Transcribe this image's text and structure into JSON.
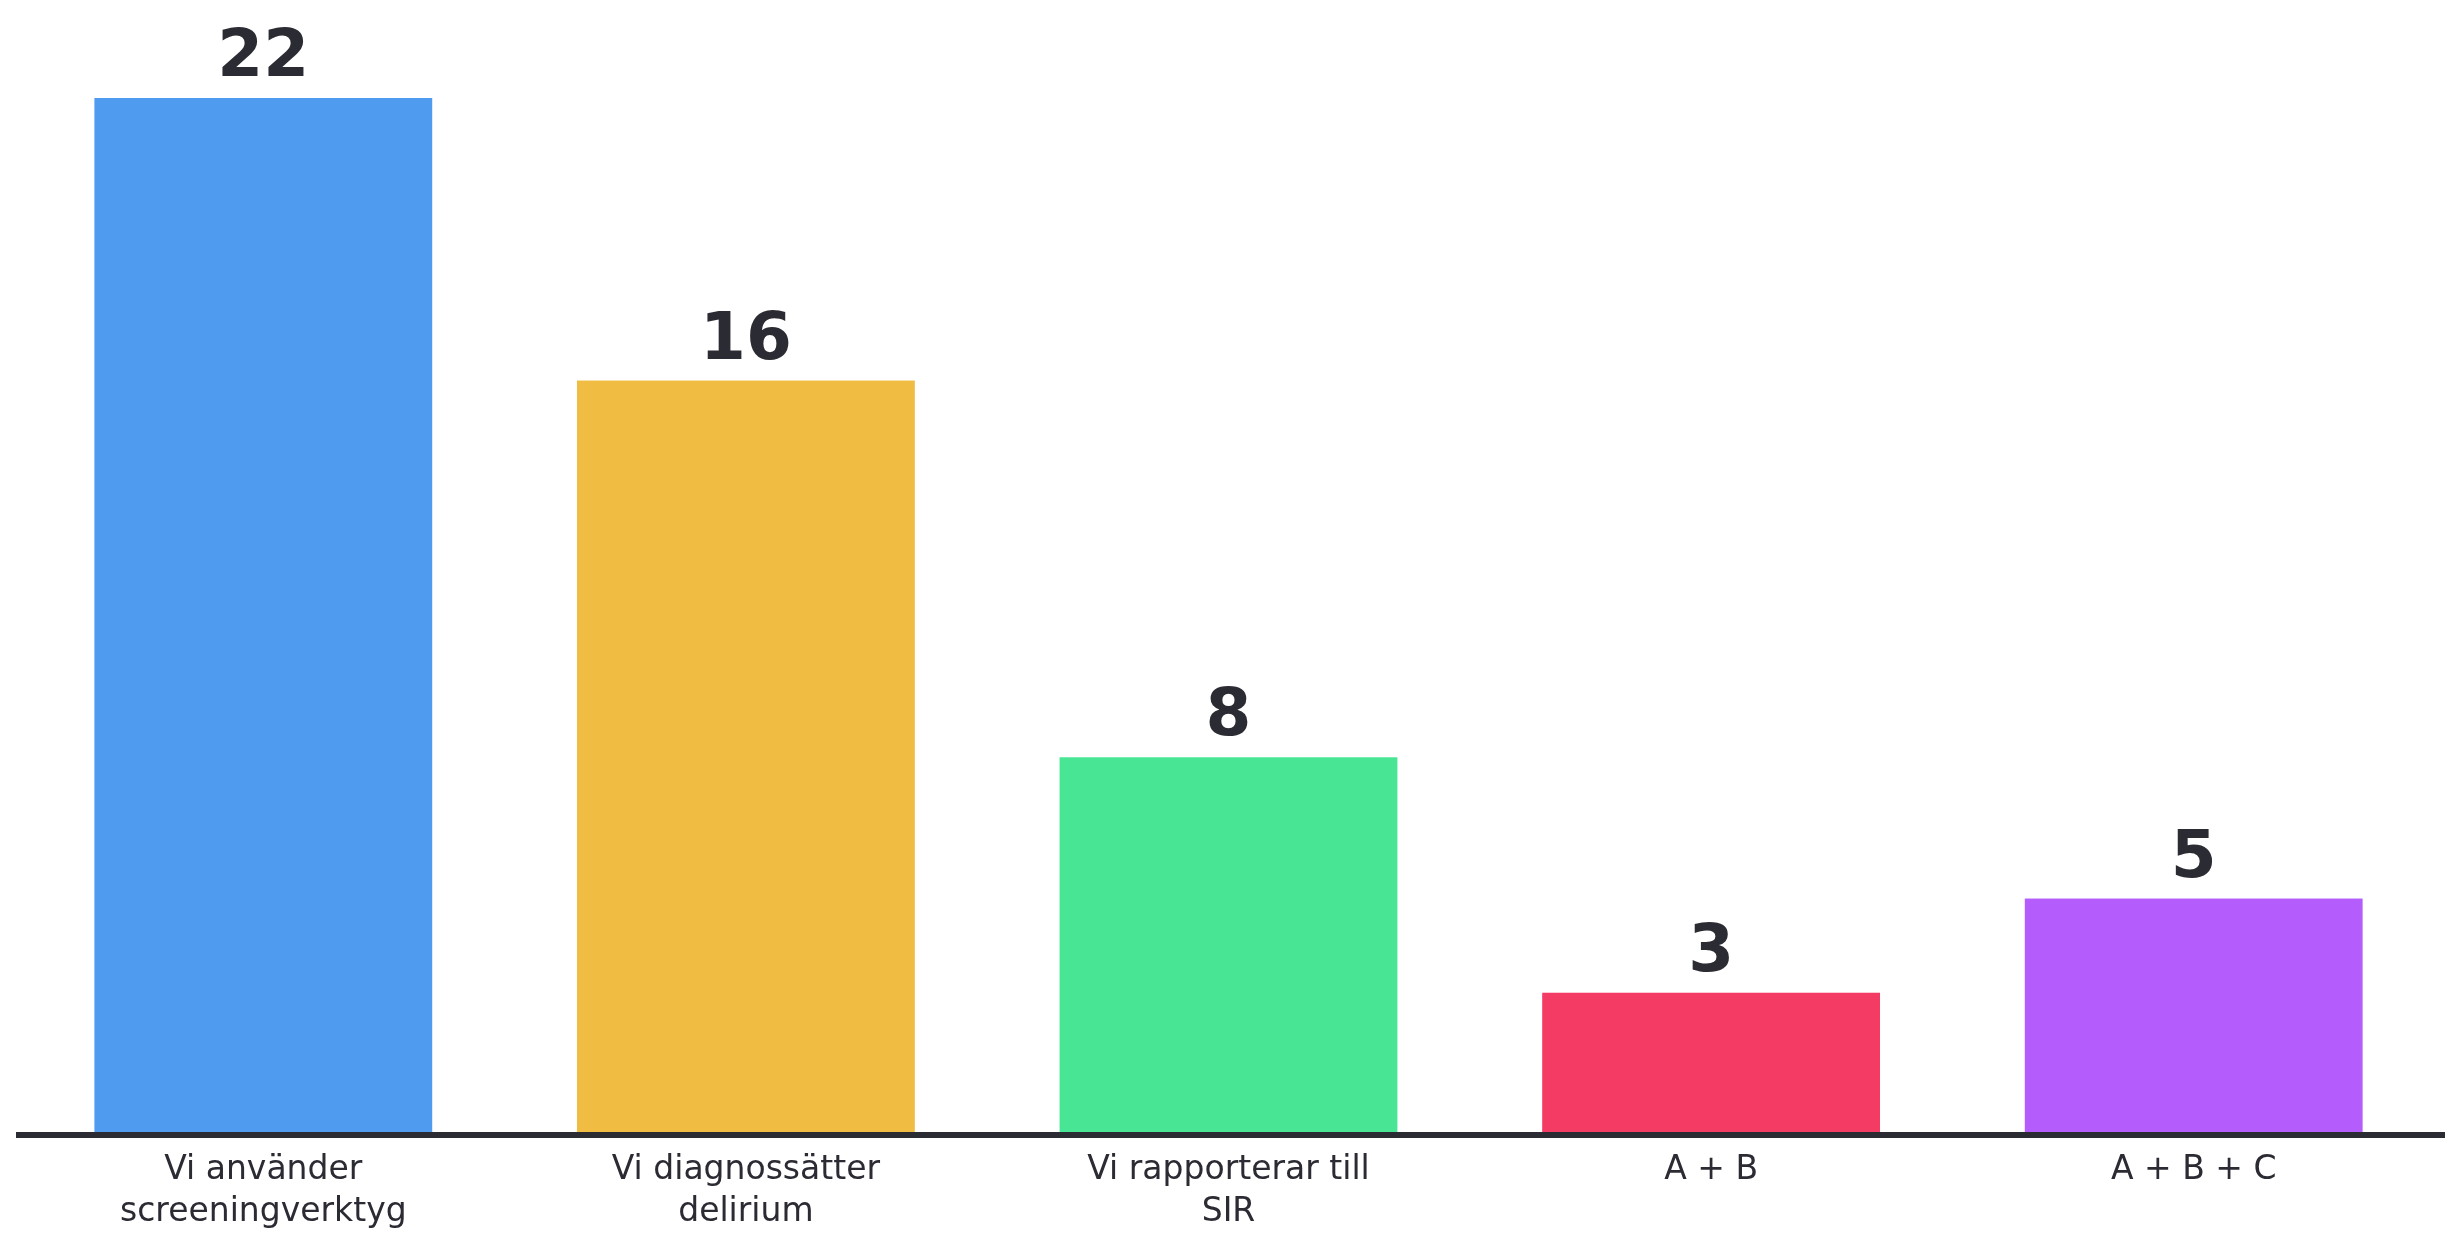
{
  "chart_data": {
    "type": "bar",
    "categories": [
      "Vi använder screeningverktyg",
      "Vi diagnossätter delirium",
      "Vi rapporterar till SIR",
      "A + B",
      "A + B + C"
    ],
    "values": [
      22,
      16,
      8,
      3,
      5
    ],
    "colors": [
      "#4f9bef",
      "#f0bc41",
      "#48e595",
      "#f43b63",
      "#b45cfc"
    ],
    "data_labels": true
  }
}
